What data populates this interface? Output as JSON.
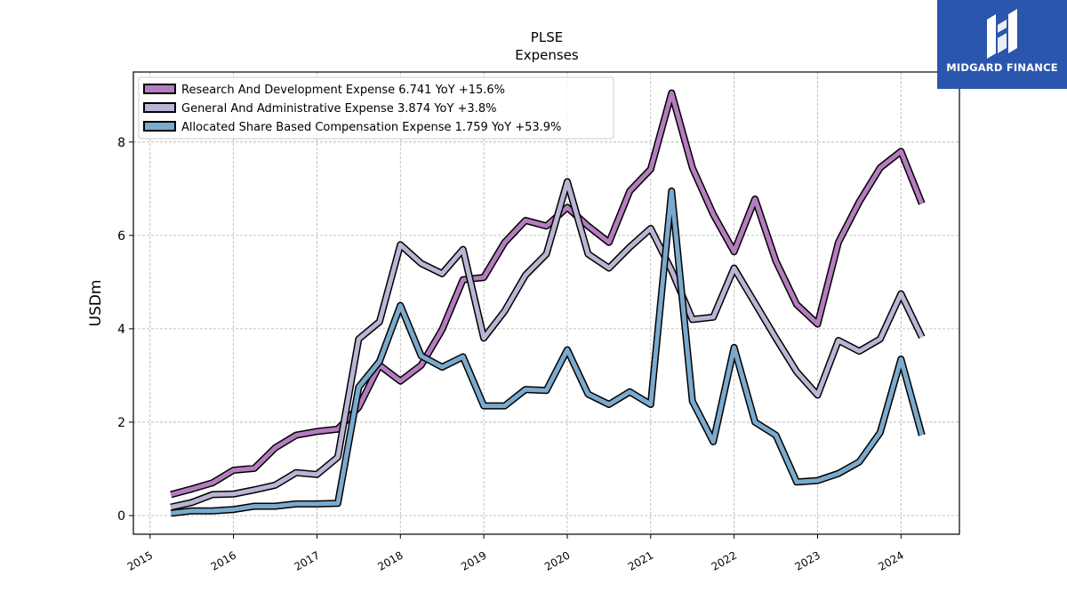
{
  "brand": {
    "name": "MIDGARD FINANCE",
    "logo_icon": "midgard-logo-icon",
    "bg_color": "#2b56ad"
  },
  "chart_data": {
    "type": "line",
    "title": "PLSE",
    "subtitle": "Expenses",
    "xlabel": "",
    "ylabel": "USDm",
    "xlim": [
      2014.8,
      2024.7
    ],
    "ylim": [
      -0.4,
      9.5
    ],
    "x_ticks": [
      2015,
      2016,
      2017,
      2018,
      2019,
      2020,
      2021,
      2022,
      2023,
      2024
    ],
    "y_ticks": [
      0,
      2,
      4,
      6,
      8
    ],
    "grid": true,
    "legend_position": "top-left",
    "series": [
      {
        "name": "Research And Development Expense  6.741 YoY +15.6%",
        "color": "#b57cbf",
        "points": [
          [
            2015.25,
            0.45
          ],
          [
            2015.5,
            0.57
          ],
          [
            2015.75,
            0.7
          ],
          [
            2016.0,
            0.97
          ],
          [
            2016.25,
            1.01
          ],
          [
            2016.5,
            1.45
          ],
          [
            2016.75,
            1.72
          ],
          [
            2017.0,
            1.8
          ],
          [
            2017.25,
            1.85
          ],
          [
            2017.5,
            2.32
          ],
          [
            2017.75,
            3.22
          ],
          [
            2018.0,
            2.88
          ],
          [
            2018.25,
            3.22
          ],
          [
            2018.5,
            3.98
          ],
          [
            2018.75,
            5.05
          ],
          [
            2019.0,
            5.1
          ],
          [
            2019.25,
            5.85
          ],
          [
            2019.5,
            6.32
          ],
          [
            2019.75,
            6.2
          ],
          [
            2020.0,
            6.6
          ],
          [
            2020.25,
            6.2
          ],
          [
            2020.5,
            5.85
          ],
          [
            2020.75,
            6.95
          ],
          [
            2021.0,
            7.42
          ],
          [
            2021.25,
            9.05
          ],
          [
            2021.5,
            7.45
          ],
          [
            2021.75,
            6.45
          ],
          [
            2022.0,
            5.65
          ],
          [
            2022.25,
            6.78
          ],
          [
            2022.5,
            5.45
          ],
          [
            2022.75,
            4.52
          ],
          [
            2023.0,
            4.1
          ],
          [
            2023.25,
            5.85
          ],
          [
            2023.5,
            6.72
          ],
          [
            2023.75,
            7.45
          ],
          [
            2024.0,
            7.8
          ],
          [
            2024.25,
            6.68
          ]
        ]
      },
      {
        "name": "General And Administrative Expense  3.874 YoY +3.8%",
        "color": "#b9b5d4",
        "points": [
          [
            2015.25,
            0.18
          ],
          [
            2015.5,
            0.28
          ],
          [
            2015.75,
            0.45
          ],
          [
            2016.0,
            0.46
          ],
          [
            2016.25,
            0.55
          ],
          [
            2016.5,
            0.65
          ],
          [
            2016.75,
            0.92
          ],
          [
            2017.0,
            0.88
          ],
          [
            2017.25,
            1.25
          ],
          [
            2017.5,
            3.78
          ],
          [
            2017.75,
            4.15
          ],
          [
            2018.0,
            5.8
          ],
          [
            2018.25,
            5.4
          ],
          [
            2018.5,
            5.18
          ],
          [
            2018.75,
            5.7
          ],
          [
            2019.0,
            3.8
          ],
          [
            2019.25,
            4.38
          ],
          [
            2019.5,
            5.15
          ],
          [
            2019.75,
            5.6
          ],
          [
            2020.0,
            7.15
          ],
          [
            2020.25,
            5.6
          ],
          [
            2020.5,
            5.3
          ],
          [
            2020.75,
            5.75
          ],
          [
            2021.0,
            6.15
          ],
          [
            2021.25,
            5.25
          ],
          [
            2021.5,
            4.2
          ],
          [
            2021.75,
            4.25
          ],
          [
            2022.0,
            5.3
          ],
          [
            2022.25,
            4.55
          ],
          [
            2022.5,
            3.8
          ],
          [
            2022.75,
            3.08
          ],
          [
            2023.0,
            2.58
          ],
          [
            2023.25,
            3.75
          ],
          [
            2023.5,
            3.52
          ],
          [
            2023.75,
            3.78
          ],
          [
            2024.0,
            4.75
          ],
          [
            2024.25,
            3.82
          ]
        ]
      },
      {
        "name": "Allocated Share Based Compensation Expense  1.759 YoY +53.9%",
        "color": "#7aaacd",
        "points": [
          [
            2015.25,
            0.05
          ],
          [
            2015.5,
            0.1
          ],
          [
            2015.75,
            0.1
          ],
          [
            2016.0,
            0.13
          ],
          [
            2016.25,
            0.2
          ],
          [
            2016.5,
            0.2
          ],
          [
            2016.75,
            0.25
          ],
          [
            2017.0,
            0.25
          ],
          [
            2017.25,
            0.26
          ],
          [
            2017.5,
            2.75
          ],
          [
            2017.75,
            3.3
          ],
          [
            2018.0,
            4.5
          ],
          [
            2018.25,
            3.42
          ],
          [
            2018.5,
            3.18
          ],
          [
            2018.75,
            3.4
          ],
          [
            2019.0,
            2.35
          ],
          [
            2019.25,
            2.35
          ],
          [
            2019.5,
            2.7
          ],
          [
            2019.75,
            2.68
          ],
          [
            2020.0,
            3.55
          ],
          [
            2020.25,
            2.6
          ],
          [
            2020.5,
            2.38
          ],
          [
            2020.75,
            2.65
          ],
          [
            2021.0,
            2.38
          ],
          [
            2021.25,
            6.95
          ],
          [
            2021.5,
            2.45
          ],
          [
            2021.75,
            1.58
          ],
          [
            2022.0,
            3.6
          ],
          [
            2022.25,
            2.0
          ],
          [
            2022.5,
            1.72
          ],
          [
            2022.75,
            0.72
          ],
          [
            2023.0,
            0.75
          ],
          [
            2023.25,
            0.9
          ],
          [
            2023.5,
            1.15
          ],
          [
            2023.75,
            1.78
          ],
          [
            2024.0,
            3.35
          ],
          [
            2024.25,
            1.72
          ]
        ]
      }
    ]
  }
}
